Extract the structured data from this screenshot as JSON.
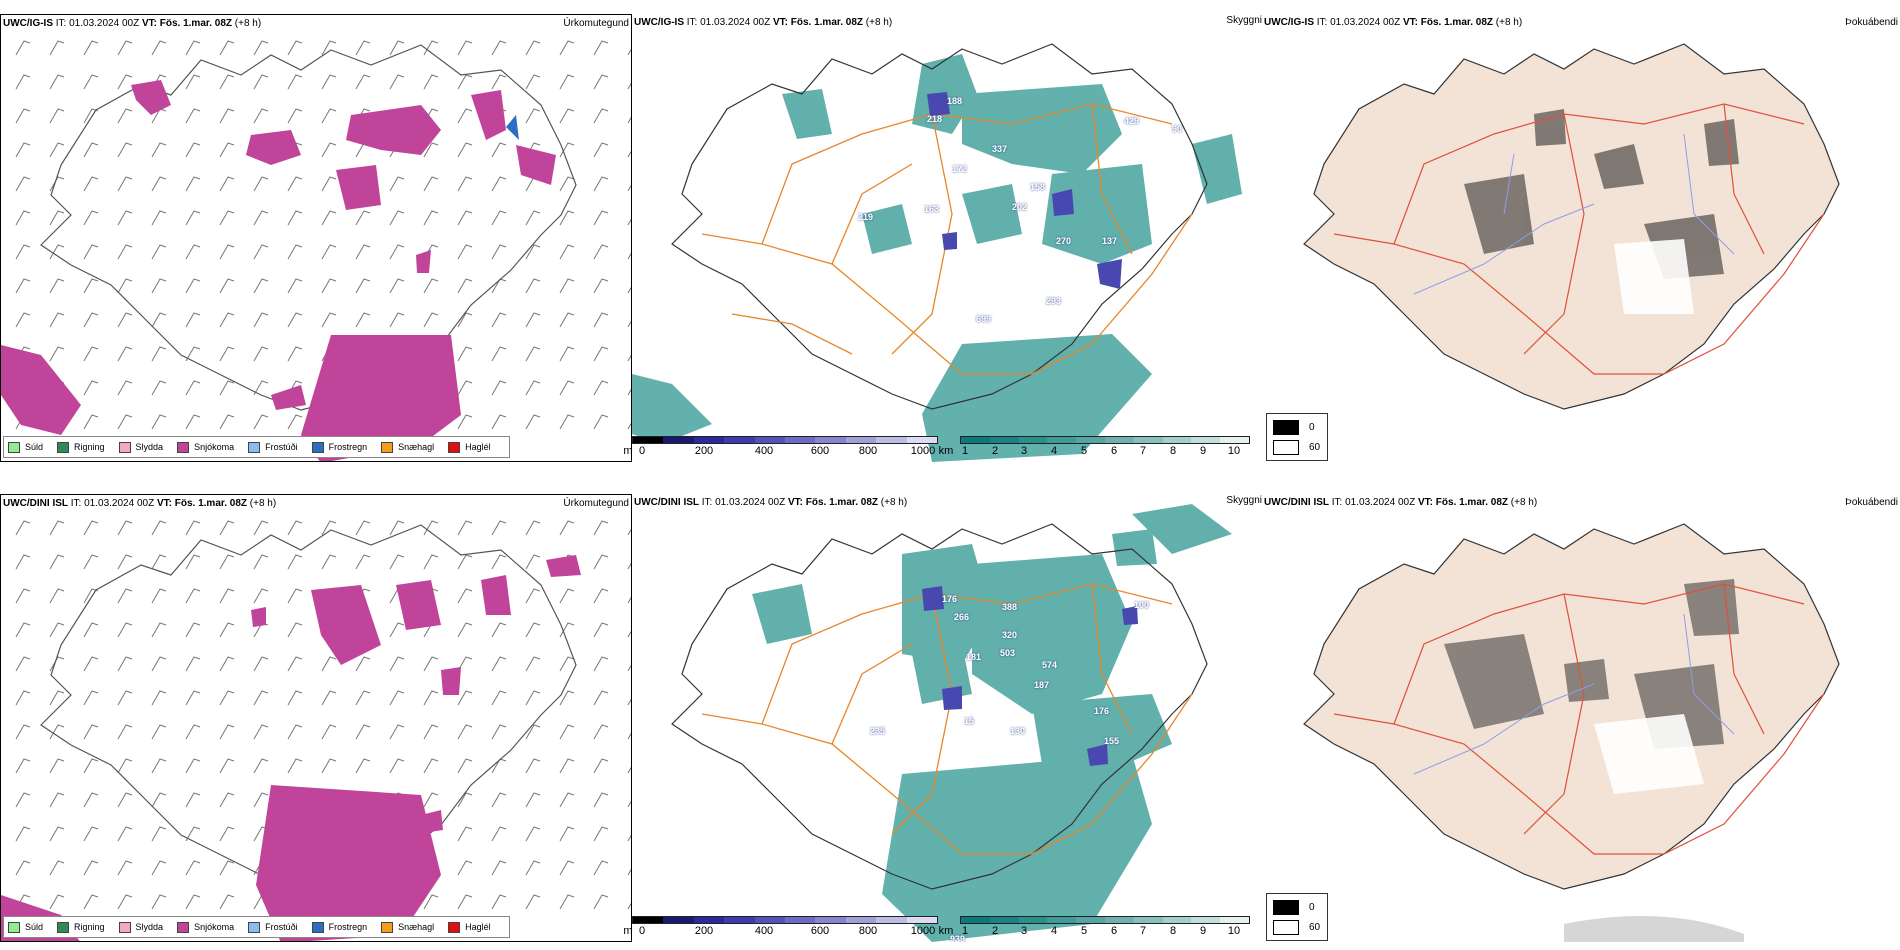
{
  "rows": [
    {
      "model": "UWC/IG-IS",
      "it_label": "IT:",
      "it_value": "01.03.2024 00Z",
      "vt_label": "VT:",
      "vt_value": "Fös. 1.mar. 08Z",
      "lead": "(+8 h)",
      "precip_title": "Úrkomutegund",
      "cloud_title": "Skyggni",
      "fog_title": "Þokuábendi",
      "visibility_labels": [
        "218",
        "188",
        "337",
        "172",
        "429",
        "90",
        "158",
        "202",
        "163",
        "219",
        "270",
        "137",
        "293",
        "699"
      ]
    },
    {
      "model": "UWC/DINI ISL",
      "it_label": "IT:",
      "it_value": "01.03.2024 00Z",
      "vt_label": "VT:",
      "vt_value": "Fös. 1.mar. 08Z",
      "lead": "(+8 h)",
      "precip_title": "Úrkomutegund",
      "cloud_title": "Skyggni",
      "fog_title": "Þokuábendi",
      "visibility_labels": [
        "176",
        "266",
        "388",
        "320",
        "503",
        "181",
        "574",
        "187",
        "100",
        "130",
        "176",
        "155",
        "15",
        "235",
        "939"
      ]
    }
  ],
  "precip_legend": [
    {
      "label": "Súld",
      "color": "#90ee90"
    },
    {
      "label": "Rigning",
      "color": "#2e8b57"
    },
    {
      "label": "Slydda",
      "color": "#f4a6c8"
    },
    {
      "label": "Snjókoma",
      "color": "#c0449a"
    },
    {
      "label": "Frostúði",
      "color": "#87bdf0"
    },
    {
      "label": "Frostregn",
      "color": "#2a6fc2"
    },
    {
      "label": "Snæhagl",
      "color": "#f39c1f"
    },
    {
      "label": "Haglél",
      "color": "#e01010"
    }
  ],
  "height_scale": {
    "unit": "m",
    "ticks": [
      "0",
      "200",
      "400",
      "600",
      "800",
      "1000"
    ],
    "colors": [
      "#000000",
      "#1a1a6e",
      "#2a2a9a",
      "#3d3db0",
      "#5252bb",
      "#6b6bc4",
      "#8686cf",
      "#a0a0d9",
      "#bdbde5",
      "#dcdcf2"
    ]
  },
  "vis_scale": {
    "unit": "km",
    "ticks": [
      "1",
      "2",
      "3",
      "4",
      "5",
      "6",
      "7",
      "8",
      "9",
      "10"
    ],
    "colors": [
      "#0c7a78",
      "#1a8582",
      "#2a908c",
      "#3f9b97",
      "#55a6a2",
      "#6db2ae",
      "#88c0bc",
      "#a5cfcb",
      "#c4e0dd",
      "#e4f1f0"
    ]
  },
  "fog_scale": {
    "ticks": [
      "0",
      "60"
    ],
    "colors": [
      "#000000",
      "#ffffff"
    ]
  },
  "colors": {
    "snow": "#c0449a",
    "teal": "#46a39d",
    "road": "#e8862a",
    "land_fog": "#f3e3d6",
    "road_fog": "#e0503a",
    "river": "#8aa0e8",
    "blue_patch": "#4848b0"
  }
}
